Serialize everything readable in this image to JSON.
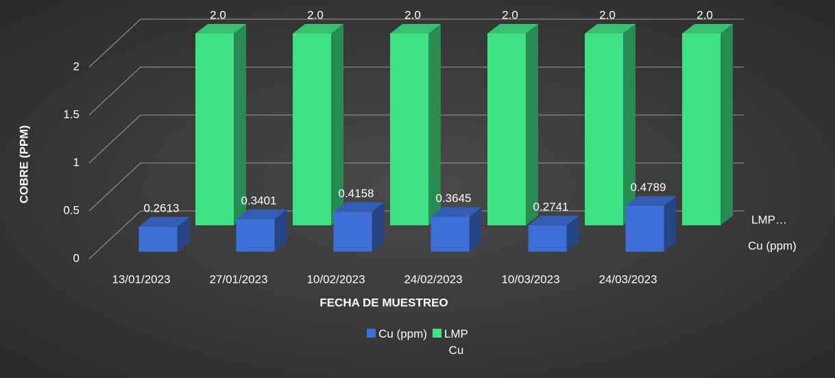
{
  "chart_data": {
    "type": "bar3d",
    "x_label": "FECHA DE MUESTREO",
    "y_label": "COBRE (PPM)",
    "categories": [
      "13/01/2023",
      "27/01/2023",
      "10/02/2023",
      "24/02/2023",
      "10/03/2023",
      "24/03/2023"
    ],
    "series": [
      {
        "name": "Cu (ppm)",
        "color": "#3d6fd6",
        "values": [
          0.2613,
          0.3401,
          0.4158,
          0.3645,
          0.2741,
          0.4789
        ]
      },
      {
        "name": "LMP\nCu",
        "color": "#3fe283",
        "values": [
          2,
          2,
          2,
          2,
          2,
          2
        ],
        "value_labels": [
          "2.0",
          "2.0",
          "2.0",
          "2.0",
          "2.0",
          "2.0"
        ]
      }
    ],
    "depth_labels": [
      "Cu (ppm)",
      "LMP…"
    ],
    "ylim": [
      0,
      2
    ],
    "yticks": [
      0,
      0.5,
      1,
      1.5,
      2
    ],
    "grid": true,
    "legend": "bottom"
  }
}
